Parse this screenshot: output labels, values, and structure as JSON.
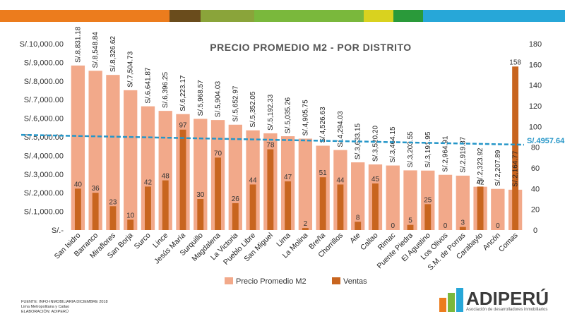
{
  "topbar_colors": [
    "#ec7c1d",
    "#ec7c1d",
    "#6a4c1c",
    "#8aa43a",
    "#7ab83c",
    "#d9d21f",
    "#2a9a3a",
    "#27a7d8"
  ],
  "chart_data": {
    "type": "bar",
    "title": "PRECIO PROMEDIO M2 - POR DISTRITO",
    "categories": [
      "San Isidro",
      "Barranco",
      "Miraflores",
      "San Borja",
      "Surco",
      "Lince",
      "Jesús María",
      "Surquillo",
      "Magdalena",
      "La Victoria",
      "Pueblo Libre",
      "San Miguel",
      "Lima",
      "La Molina",
      "Breña",
      "Chorrillos",
      "Ate",
      "Callao",
      "Rimac",
      "Puente Piedra",
      "El Agustino",
      "Los Olivos",
      "S.M. de Porras",
      "Carabaylo",
      "Ancón",
      "Comas"
    ],
    "series": [
      {
        "name": "Precio Promedio M2",
        "axis": "left",
        "color": "#f2a98a",
        "values": [
          8831.18,
          8548.84,
          8326.62,
          7504.73,
          6641.87,
          6396.25,
          6223.17,
          5968.57,
          5904.03,
          5652.97,
          5352.05,
          5192.33,
          5035.26,
          4905.75,
          4526.63,
          4294.03,
          3633.15,
          3520.2,
          3464.15,
          3203.55,
          3191.95,
          2964.91,
          2919.87,
          2323.92,
          2207.89,
          2164.77
        ],
        "labels": [
          "S/.8,831.18",
          "S/.8,548.84",
          "S/.8,326.62",
          "S/.7,504.73",
          "S/.6,641.87",
          "S/.6,396.25",
          "S/.6,223.17",
          "S/.5,968.57",
          "S/.5,904.03",
          "S/.5,652.97",
          "S/.5,352.05",
          "S/.5,192.33",
          "S/.5,035.26",
          "S/.4,905.75",
          "S/.4,526.63",
          "S/.4,294.03",
          "S/.3,633.15",
          "S/.3,520.20",
          "S/.3,464.15",
          "S/.3,203.55",
          "S/.3,191.95",
          "S/.2,964.91",
          "S/.2,919.87",
          "S/.2,323.92",
          "S/.2,207.89",
          "S/.2,164.77"
        ]
      },
      {
        "name": "Ventas",
        "axis": "right",
        "color": "#c8651f",
        "values": [
          40,
          36,
          23,
          10,
          42,
          48,
          97,
          30,
          70,
          26,
          44,
          78,
          47,
          2,
          51,
          44,
          8,
          45,
          0,
          5,
          25,
          0,
          3,
          42,
          0,
          158
        ]
      }
    ],
    "y_left": {
      "min": 0,
      "max": 10000,
      "ticks": [
        "S/.-",
        "S/.1,000.00",
        "S/.2,000.00",
        "S/.3,000.00",
        "S/.4,000.00",
        "S/.5,000.00",
        "S/.6,000.00",
        "S/.7,000.00",
        "S/.8,000.00",
        "S/.9,000.00",
        "S/.10,000.00"
      ]
    },
    "y_right": {
      "min": 0,
      "max": 180,
      "ticks": [
        "0",
        "20",
        "40",
        "60",
        "80",
        "100",
        "120",
        "140",
        "160",
        "180"
      ]
    },
    "average_line": {
      "value": 4957.64,
      "label": "S/.4957.64",
      "color": "#2596c8"
    },
    "legend": [
      "Precio Promedio M2",
      "Ventas"
    ]
  },
  "footer": {
    "line1": "FUENTE: INFO-INMOBILIARIA DICIEMBRE 2018",
    "line2": "Lima Metropolitana  y Callao",
    "line3": "ELABORACIÓN: ADIPERÚ"
  },
  "logo": {
    "name": "ADIPERÚ",
    "subtitle": "Asociación de desarrolladores inmobiliarios",
    "colors": [
      "#ec7c1d",
      "#7ab83c",
      "#27a7d8"
    ]
  }
}
